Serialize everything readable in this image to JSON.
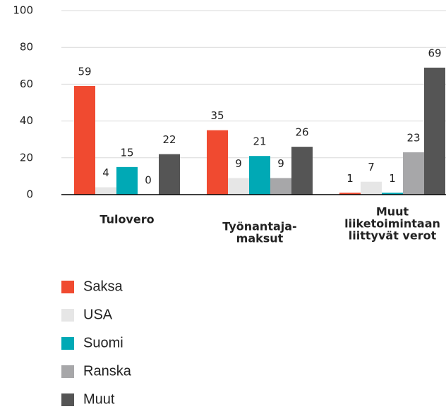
{
  "chart_data": {
    "type": "bar",
    "categories": [
      [
        "Tulovero"
      ],
      [
        "Työnantaja-",
        "maksut"
      ],
      [
        "Muut",
        "liiketoimintaan",
        "liittyvät verot"
      ]
    ],
    "series": [
      {
        "name": "Saksa",
        "color": "#f04a30",
        "values": [
          59,
          35,
          1
        ]
      },
      {
        "name": "USA",
        "color": "#e6e6e6",
        "values": [
          4,
          9,
          7
        ]
      },
      {
        "name": "Suomi",
        "color": "#00a9b5",
        "values": [
          15,
          21,
          1
        ]
      },
      {
        "name": "Ranska",
        "color": "#a7a7a9",
        "values": [
          0,
          9,
          23
        ]
      },
      {
        "name": "Muut",
        "color": "#555555",
        "values": [
          22,
          26,
          69
        ]
      }
    ],
    "ylim": [
      0,
      100
    ],
    "yticks": [
      0,
      20,
      40,
      60,
      80,
      100
    ],
    "grid": true,
    "legend": "bottom"
  }
}
